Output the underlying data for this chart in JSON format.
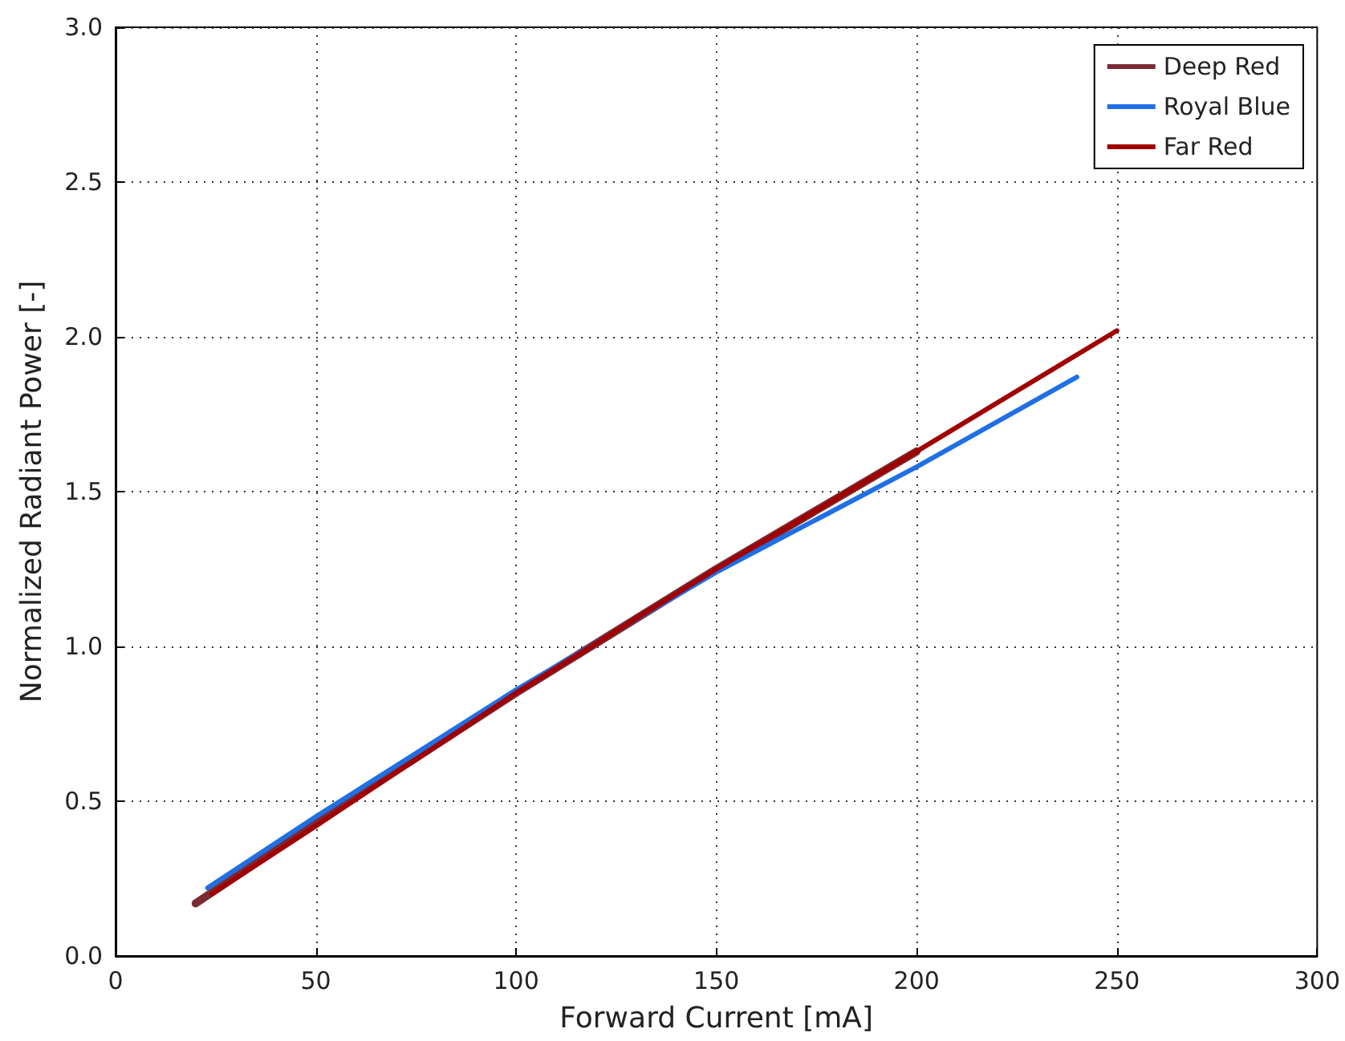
{
  "chart_data": {
    "type": "line",
    "xlabel": "Forward Current [mA]",
    "ylabel": "Normalized Radiant Power [-]",
    "xlim": [
      0,
      300
    ],
    "xticks": [
      0,
      50,
      100,
      150,
      200,
      250,
      300
    ],
    "ylim": [
      0,
      3
    ],
    "yticks": [
      {
        "value": 0,
        "label": "0.0"
      },
      {
        "value": 0.5,
        "label": "0.5"
      },
      {
        "value": 1,
        "label": "1.0"
      },
      {
        "value": 1.5,
        "label": "1.5"
      },
      {
        "value": 2,
        "label": "2.0"
      },
      {
        "value": 2.5,
        "label": "2.5"
      },
      {
        "value": 3,
        "label": "3.0"
      }
    ],
    "grid": true,
    "legend": "top right",
    "marker": "none",
    "line_style": "solid",
    "series": [
      {
        "name": "Deep Red",
        "color": "#7b2a33",
        "x": [
          20,
          50,
          100,
          150,
          200
        ],
        "values": [
          0.17,
          0.43,
          0.85,
          1.25,
          1.63
        ]
      },
      {
        "name": "Royal Blue",
        "color": "#1f6fe5",
        "x": [
          23,
          50,
          100,
          150,
          200,
          240
        ],
        "values": [
          0.22,
          0.45,
          0.86,
          1.24,
          1.58,
          1.87
        ]
      },
      {
        "name": "Far Red",
        "color": "#a00000",
        "x": [
          24,
          50,
          100,
          150,
          200,
          250
        ],
        "values": [
          0.2,
          0.42,
          0.85,
          1.25,
          1.63,
          2.02
        ]
      }
    ]
  }
}
